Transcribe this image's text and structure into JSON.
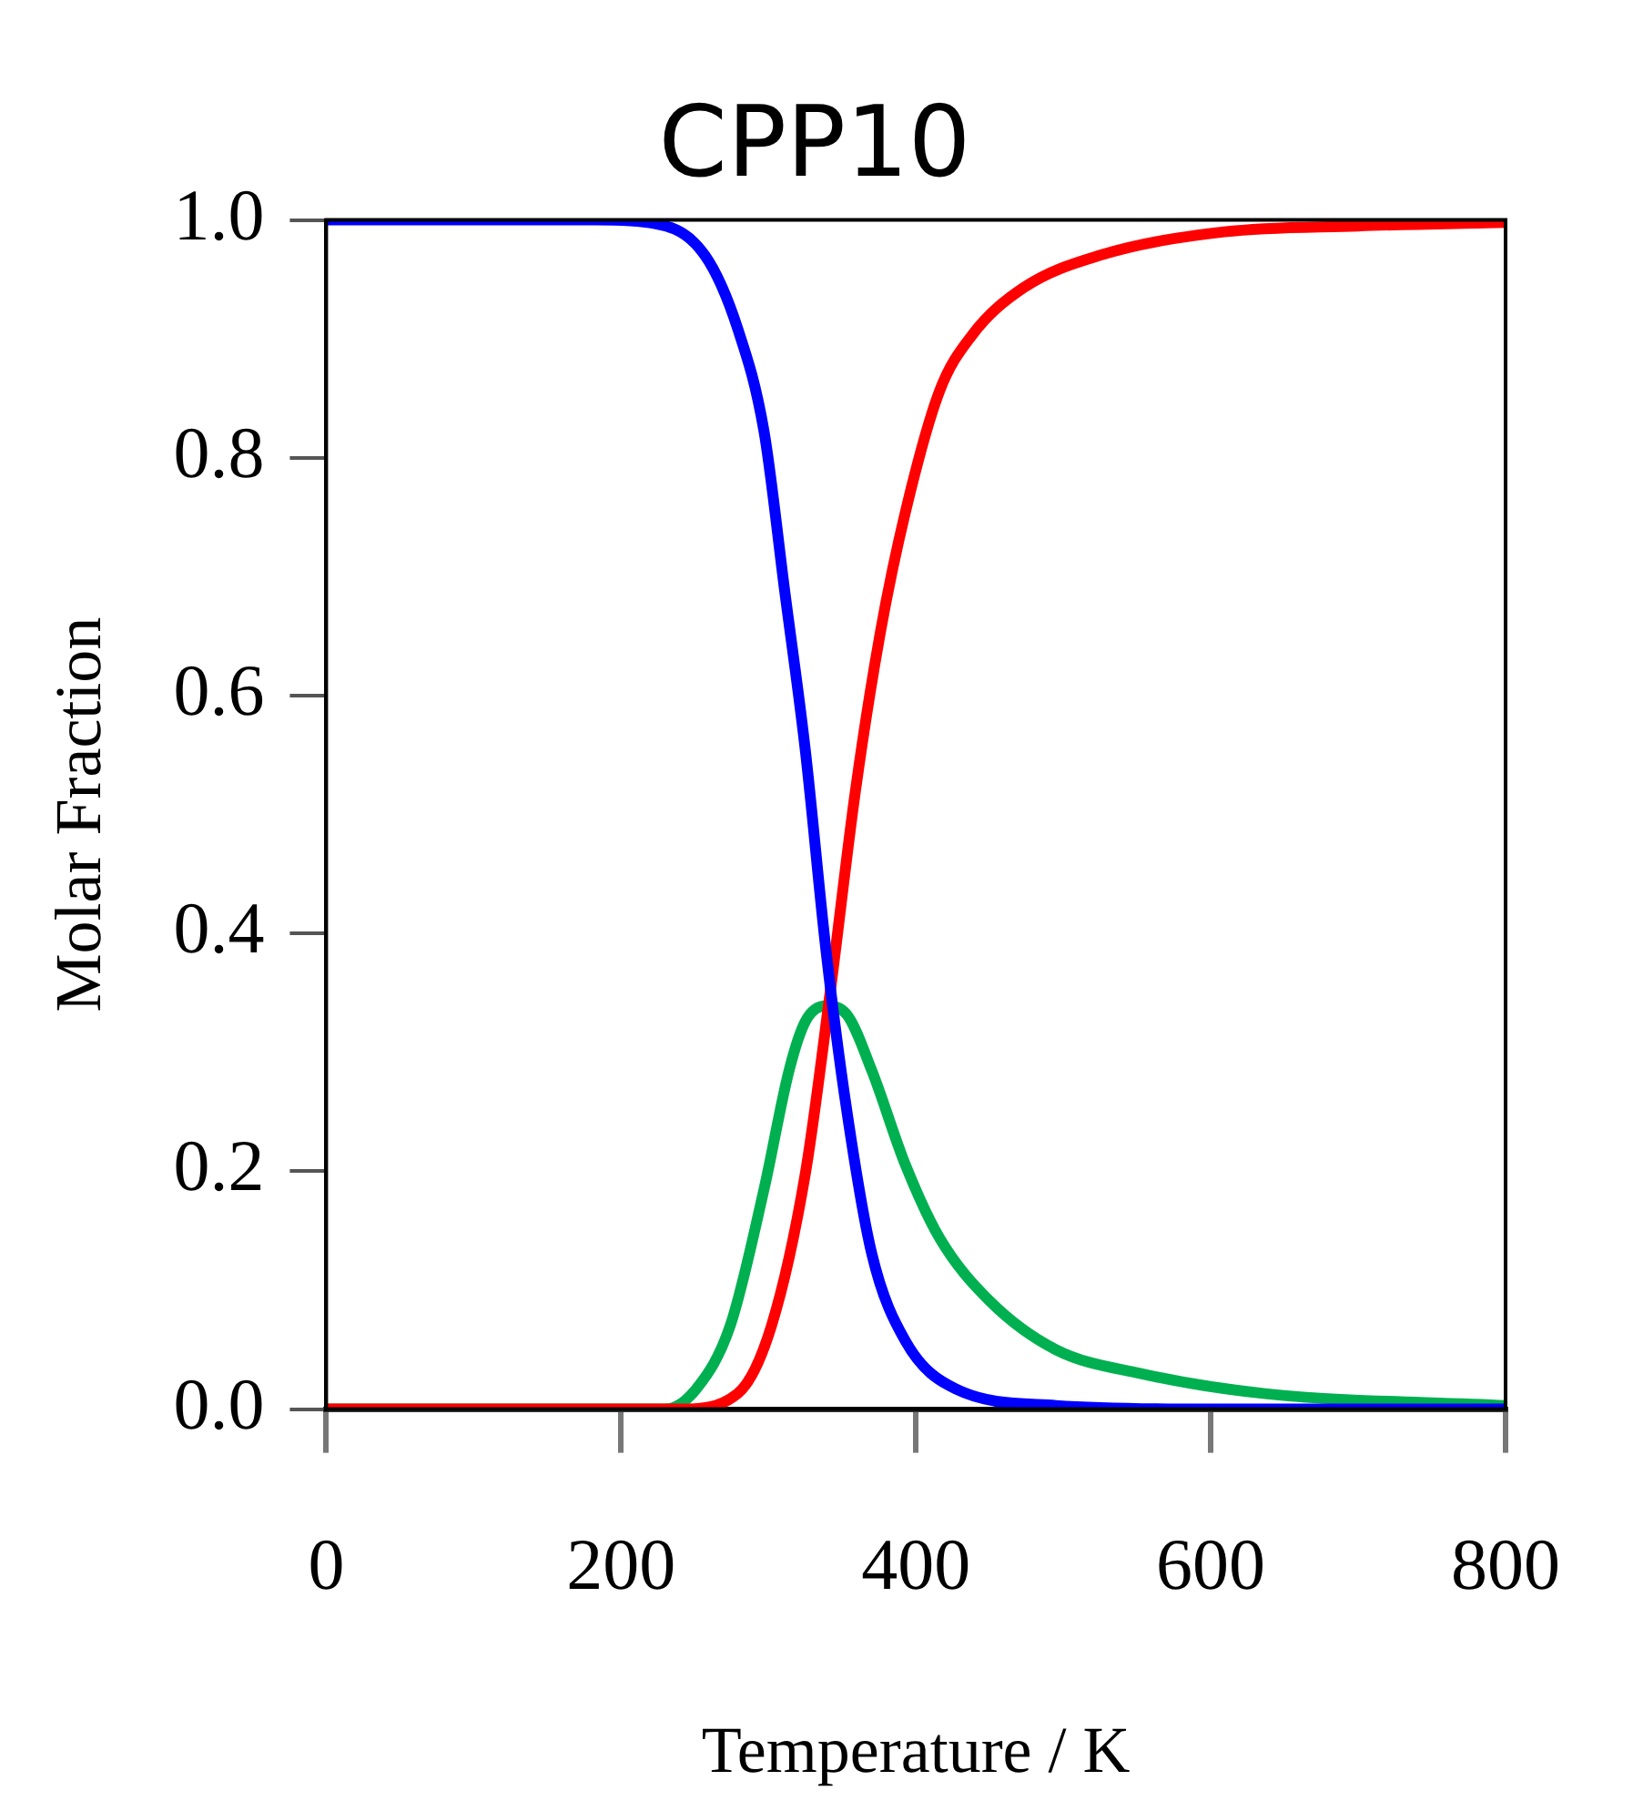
{
  "chart_data": {
    "type": "line",
    "title": "CPP10",
    "xlabel": "Temperature / K",
    "ylabel": "Molar Fraction",
    "xlim": [
      0,
      800
    ],
    "xticks": [
      0,
      200,
      400,
      600,
      800
    ],
    "ylim": [
      0,
      1
    ],
    "yticks": [
      {
        "value": 0,
        "label": "0.0"
      },
      {
        "value": 0.2,
        "label": "0.2"
      },
      {
        "value": 0.4,
        "label": "0.4"
      },
      {
        "value": 0.6,
        "label": "0.6"
      },
      {
        "value": 0.8,
        "label": "0.8"
      },
      {
        "value": 1,
        "label": "1.0"
      }
    ],
    "grid": false,
    "legend": false,
    "marker": "none",
    "line_style": "solid",
    "series": [
      {
        "color": "#0000ff",
        "x": [
          0,
          183,
          223,
          257,
          279,
          297,
          311,
          325,
          339,
          353,
          370,
          393,
          427,
          495,
          600,
          800
        ],
        "values": [
          1,
          1,
          0.997,
          0.97,
          0.909,
          0.822,
          0.688,
          0.554,
          0.386,
          0.252,
          0.131,
          0.057,
          0.017,
          0.003,
          0,
          0
        ]
      },
      {
        "color": "#ff0000",
        "x": [
          0,
          240,
          279,
          302,
          325,
          342,
          359,
          376,
          393,
          416,
          438,
          473,
          524,
          609,
          700,
          800
        ],
        "values": [
          0,
          0,
          0.013,
          0.07,
          0.198,
          0.352,
          0.52,
          0.654,
          0.755,
          0.856,
          0.903,
          0.943,
          0.97,
          0.99,
          0.995,
          0.998
        ]
      },
      {
        "color": "#00b050",
        "x": [
          0,
          230,
          251,
          274,
          297,
          314,
          325,
          339,
          353,
          370,
          393,
          416,
          450,
          495,
          552,
          637,
          800
        ],
        "values": [
          0,
          0,
          0.017,
          0.07,
          0.185,
          0.285,
          0.326,
          0.339,
          0.332,
          0.285,
          0.205,
          0.144,
          0.091,
          0.05,
          0.03,
          0.013,
          0.003
        ]
      }
    ]
  }
}
